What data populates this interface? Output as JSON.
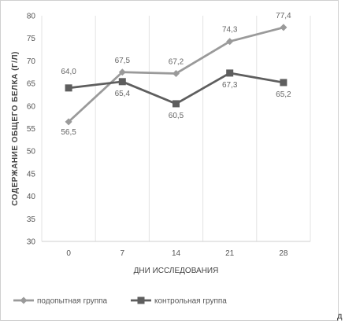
{
  "chart_data": {
    "type": "line",
    "title": "",
    "xlabel": "ДНИ ИССЛЕДОВАНИЯ",
    "ylabel": "СОДЕРЖАНИЕ ОБЩЕГО БЕЛКА (Г/Л)",
    "categories": [
      "0",
      "7",
      "14",
      "21",
      "28"
    ],
    "ylim": [
      30,
      80
    ],
    "yticks": [
      30,
      35,
      40,
      45,
      50,
      55,
      60,
      65,
      70,
      75,
      80
    ],
    "grid": "vertical",
    "legend_position": "bottom",
    "series": [
      {
        "name": "подопытная группа",
        "values": [
          56.5,
          67.5,
          67.2,
          74.3,
          77.4
        ],
        "labels": [
          "56,5",
          "67,5",
          "67,2",
          "74,3",
          "77,4"
        ],
        "color": "#9a9a9a",
        "marker": "diamond"
      },
      {
        "name": "контрольная группа",
        "values": [
          64.0,
          65.4,
          60.5,
          67.3,
          65.2
        ],
        "labels": [
          "64,0",
          "65,4",
          "60,5",
          "67,3",
          "65,2"
        ],
        "color": "#5e5e5e",
        "marker": "square"
      }
    ]
  },
  "corner_mark": "д"
}
